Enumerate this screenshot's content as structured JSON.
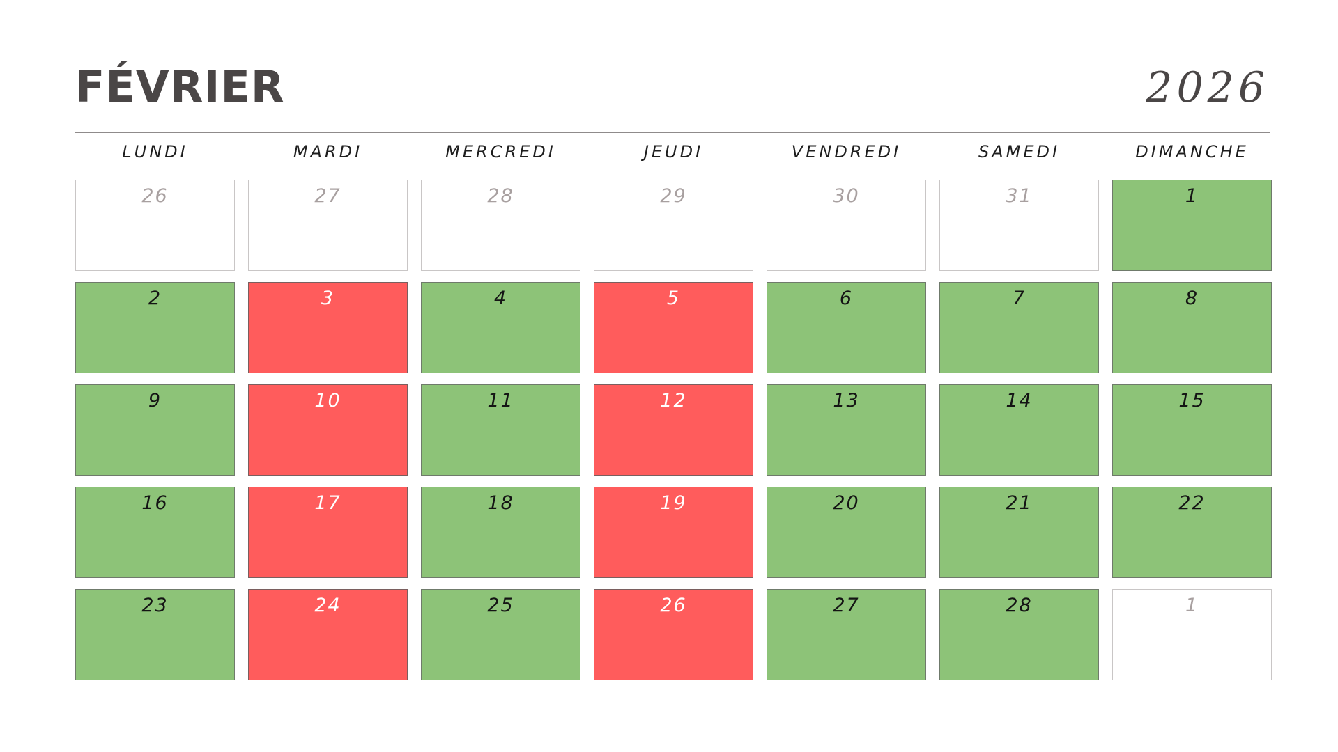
{
  "header": {
    "month": "FÉVRIER",
    "year": "2026"
  },
  "weekdays": [
    "LUNDI",
    "MARDI",
    "MERCREDI",
    "JEUDI",
    "VENDREDI",
    "SAMEDI",
    "DIMANCHE"
  ],
  "colors": {
    "available": "#8dc378",
    "busy": "#ff5c5c",
    "outside_month": "#ffffff",
    "title": "#4a4646"
  },
  "weeks": [
    [
      {
        "day": "26",
        "status": "outside"
      },
      {
        "day": "27",
        "status": "outside"
      },
      {
        "day": "28",
        "status": "outside"
      },
      {
        "day": "29",
        "status": "outside"
      },
      {
        "day": "30",
        "status": "outside"
      },
      {
        "day": "31",
        "status": "outside"
      },
      {
        "day": "1",
        "status": "ok"
      }
    ],
    [
      {
        "day": "2",
        "status": "ok"
      },
      {
        "day": "3",
        "status": "busy"
      },
      {
        "day": "4",
        "status": "ok"
      },
      {
        "day": "5",
        "status": "busy"
      },
      {
        "day": "6",
        "status": "ok"
      },
      {
        "day": "7",
        "status": "ok"
      },
      {
        "day": "8",
        "status": "ok"
      }
    ],
    [
      {
        "day": "9",
        "status": "ok"
      },
      {
        "day": "10",
        "status": "busy"
      },
      {
        "day": "11",
        "status": "ok"
      },
      {
        "day": "12",
        "status": "busy"
      },
      {
        "day": "13",
        "status": "ok"
      },
      {
        "day": "14",
        "status": "ok"
      },
      {
        "day": "15",
        "status": "ok"
      }
    ],
    [
      {
        "day": "16",
        "status": "ok"
      },
      {
        "day": "17",
        "status": "busy"
      },
      {
        "day": "18",
        "status": "ok"
      },
      {
        "day": "19",
        "status": "busy"
      },
      {
        "day": "20",
        "status": "ok"
      },
      {
        "day": "21",
        "status": "ok"
      },
      {
        "day": "22",
        "status": "ok"
      }
    ],
    [
      {
        "day": "23",
        "status": "ok"
      },
      {
        "day": "24",
        "status": "busy"
      },
      {
        "day": "25",
        "status": "ok"
      },
      {
        "day": "26",
        "status": "busy"
      },
      {
        "day": "27",
        "status": "ok"
      },
      {
        "day": "28",
        "status": "ok"
      },
      {
        "day": "1",
        "status": "outside"
      }
    ]
  ]
}
